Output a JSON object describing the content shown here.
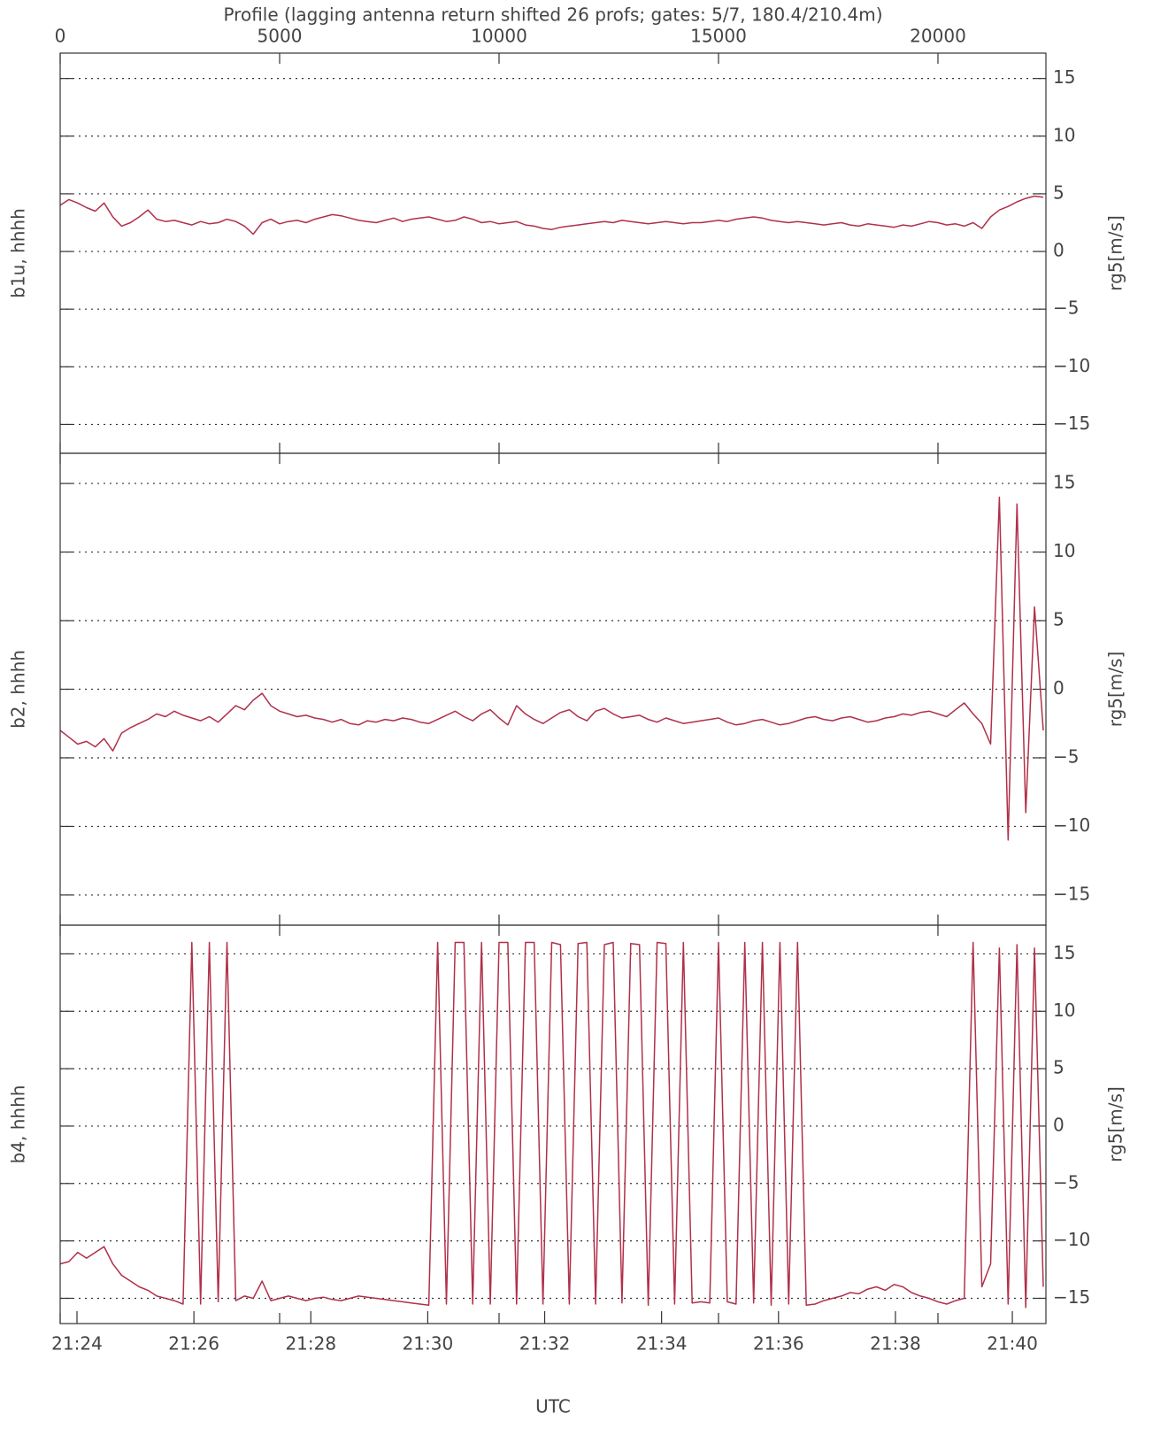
{
  "chart_data": {
    "type": "line",
    "title": "Profile (lagging antenna return shifted 26 profs; gates: 5/7, 180.4/210.4m)",
    "xlabel": "UTC",
    "xlim": [
      0,
      22460
    ],
    "xticks": [
      0,
      5000,
      10000,
      15000,
      20000
    ],
    "time_ticks": [
      {
        "value": 383,
        "label": "21:24"
      },
      {
        "value": 3047,
        "label": "21:26"
      },
      {
        "value": 5711,
        "label": "21:28"
      },
      {
        "value": 8375,
        "label": "21:30"
      },
      {
        "value": 11039,
        "label": "21:32"
      },
      {
        "value": 13703,
        "label": "21:34"
      },
      {
        "value": 16367,
        "label": "21:36"
      },
      {
        "value": 19031,
        "label": "21:38"
      },
      {
        "value": 21695,
        "label": "21:40"
      }
    ],
    "grid": true,
    "x": [
      0,
      200,
      400,
      600,
      800,
      1000,
      1200,
      1400,
      1600,
      1800,
      2000,
      2200,
      2400,
      2600,
      2800,
      3000,
      3200,
      3400,
      3600,
      3800,
      4000,
      4200,
      4400,
      4600,
      4800,
      5000,
      5200,
      5400,
      5600,
      5800,
      6000,
      6200,
      6400,
      6600,
      6800,
      7000,
      7200,
      7400,
      7600,
      7800,
      8000,
      8200,
      8400,
      8600,
      8800,
      9000,
      9200,
      9400,
      9600,
      9800,
      10000,
      10200,
      10400,
      10600,
      10800,
      11000,
      11200,
      11400,
      11600,
      11800,
      12000,
      12200,
      12400,
      12600,
      12800,
      13000,
      13200,
      13400,
      13600,
      13800,
      14000,
      14200,
      14400,
      14600,
      14800,
      15000,
      15200,
      15400,
      15600,
      15800,
      16000,
      16200,
      16400,
      16600,
      16800,
      17000,
      17200,
      17400,
      17600,
      17800,
      18000,
      18200,
      18400,
      18600,
      18800,
      19000,
      19200,
      19400,
      19600,
      19800,
      20000,
      20200,
      20400,
      20600,
      20800,
      21000,
      21200,
      21400,
      21600,
      21800,
      22000,
      22200,
      22400
    ],
    "panels": [
      {
        "ylabel": "b1u, hhhh",
        "y2label": "rg5[m/s]",
        "ylim": [
          -17.5,
          17.2
        ],
        "yticks": [
          -15,
          -10,
          -5,
          0,
          5,
          10,
          15
        ],
        "series": [
          {
            "color": "#b0304a",
            "values": [
              4,
              4.5,
              4.2,
              3.8,
              3.5,
              4.2,
              3,
              2.2,
              2.5,
              3,
              3.6,
              2.8,
              2.6,
              2.7,
              2.5,
              2.3,
              2.6,
              2.4,
              2.5,
              2.8,
              2.6,
              2.2,
              1.5,
              2.5,
              2.8,
              2.4,
              2.6,
              2.7,
              2.5,
              2.8,
              3.0,
              3.2,
              3.1,
              2.9,
              2.7,
              2.6,
              2.5,
              2.7,
              2.9,
              2.6,
              2.8,
              2.9,
              3.0,
              2.8,
              2.6,
              2.7,
              3.0,
              2.8,
              2.5,
              2.6,
              2.4,
              2.5,
              2.6,
              2.3,
              2.2,
              2.0,
              1.9,
              2.1,
              2.2,
              2.3,
              2.4,
              2.5,
              2.6,
              2.5,
              2.7,
              2.6,
              2.5,
              2.4,
              2.5,
              2.6,
              2.5,
              2.4,
              2.5,
              2.5,
              2.6,
              2.7,
              2.6,
              2.8,
              2.9,
              3.0,
              2.9,
              2.7,
              2.6,
              2.5,
              2.6,
              2.5,
              2.4,
              2.3,
              2.4,
              2.5,
              2.3,
              2.2,
              2.4,
              2.3,
              2.2,
              2.1,
              2.3,
              2.2,
              2.4,
              2.6,
              2.5,
              2.3,
              2.4,
              2.2,
              2.5,
              2.0,
              3.0,
              3.6,
              3.9,
              4.3,
              4.6,
              4.8,
              4.7
            ]
          }
        ]
      },
      {
        "ylabel": "b2, hhhh",
        "y2label": "rg5[m/s]",
        "ylim": [
          -17.2,
          17.2
        ],
        "yticks": [
          -15,
          -10,
          -5,
          0,
          5,
          10,
          15
        ],
        "series": [
          {
            "color": "#b0304a",
            "values": [
              -3,
              -3.5,
              -4,
              -3.8,
              -4.2,
              -3.6,
              -4.5,
              -3.2,
              -2.8,
              -2.5,
              -2.2,
              -1.8,
              -2,
              -1.6,
              -1.9,
              -2.1,
              -2.3,
              -2,
              -2.4,
              -1.8,
              -1.2,
              -1.5,
              -0.8,
              -0.3,
              -1.2,
              -1.6,
              -1.8,
              -2,
              -1.9,
              -2.1,
              -2.2,
              -2.4,
              -2.2,
              -2.5,
              -2.6,
              -2.3,
              -2.4,
              -2.2,
              -2.3,
              -2.1,
              -2.2,
              -2.4,
              -2.5,
              -2.2,
              -1.9,
              -1.6,
              -2,
              -2.3,
              -1.8,
              -1.5,
              -2.1,
              -2.6,
              -1.2,
              -1.8,
              -2.2,
              -2.5,
              -2.1,
              -1.7,
              -1.5,
              -2,
              -2.3,
              -1.6,
              -1.4,
              -1.8,
              -2.1,
              -2,
              -1.9,
              -2.2,
              -2.4,
              -2.1,
              -2.3,
              -2.5,
              -2.4,
              -2.3,
              -2.2,
              -2.1,
              -2.4,
              -2.6,
              -2.5,
              -2.3,
              -2.2,
              -2.4,
              -2.6,
              -2.5,
              -2.3,
              -2.1,
              -2,
              -2.2,
              -2.3,
              -2.1,
              -2,
              -2.2,
              -2.4,
              -2.3,
              -2.1,
              -2,
              -1.8,
              -1.9,
              -1.7,
              -1.6,
              -1.8,
              -2,
              -1.5,
              -1,
              -1.8,
              -2.5,
              -4,
              14,
              -11,
              13.5,
              -9,
              6,
              -3
            ]
          }
        ]
      },
      {
        "ylabel": "b4, hhhh",
        "y2label": "rg5[m/s]",
        "ylim": [
          -17.2,
          17.5
        ],
        "yticks": [
          -15,
          -10,
          -5,
          0,
          5,
          10,
          15
        ],
        "series": [
          {
            "color": "#b0304a",
            "values": [
              -12,
              -11.8,
              -11,
              -11.5,
              -11,
              -10.5,
              -12,
              -13,
              -13.5,
              -14,
              -14.3,
              -14.8,
              -15,
              -15.2,
              -15.5,
              16,
              -15.5,
              16,
              -15.3,
              16,
              -15.2,
              -14.8,
              -15,
              -13.5,
              -15.2,
              -15,
              -14.8,
              -15,
              -15.2,
              -15,
              -14.9,
              -15.1,
              -15.2,
              -15,
              -14.8,
              -14.9,
              -15,
              -15.1,
              -15.2,
              -15.3,
              -15.4,
              -15.5,
              -15.6,
              16,
              -15.5,
              16,
              16,
              -15.5,
              16,
              -15.5,
              16,
              16,
              -15.5,
              16,
              16,
              -15.5,
              16,
              15.8,
              -15.5,
              15.9,
              16,
              -15.5,
              15.8,
              16,
              -15.4,
              15.9,
              15.8,
              -15.6,
              16,
              15.9,
              -15.5,
              16,
              -15.4,
              -15.3,
              -15.4,
              16,
              -15.3,
              -15.5,
              16,
              -15.4,
              16,
              -15.6,
              16,
              -15.5,
              16,
              -15.6,
              -15.5,
              -15.2,
              -15,
              -14.8,
              -14.5,
              -14.6,
              -14.2,
              -14,
              -14.3,
              -13.8,
              -14,
              -14.5,
              -14.8,
              -15,
              -15.3,
              -15.5,
              -15.2,
              -15,
              16,
              -14,
              -12,
              15.5,
              -15.5,
              15.8,
              -15.8,
              15.5,
              -14
            ]
          }
        ]
      }
    ]
  }
}
